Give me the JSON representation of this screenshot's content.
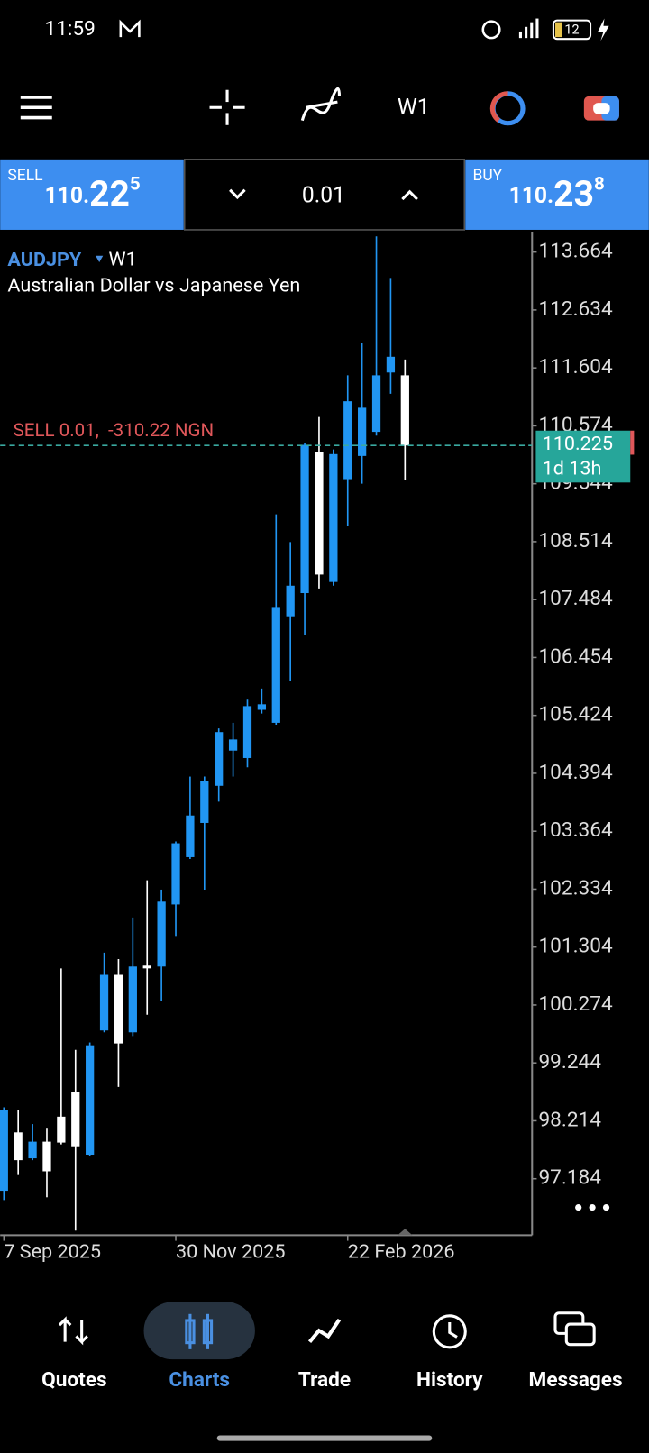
{
  "status_bar": {
    "time": "11:59",
    "battery": "12"
  },
  "toolbar": {
    "timeframe": "W1"
  },
  "trade_panel": {
    "sell_label": "SELL",
    "sell_price": {
      "prefix": "110.",
      "big": "22",
      "sup": "5"
    },
    "lot": "0.01",
    "buy_label": "BUY",
    "buy_price": {
      "prefix": "110.",
      "big": "23",
      "sup": "8"
    }
  },
  "chart_data": {
    "type": "candlestick",
    "symbol": "AUDJPY",
    "timeframe": "W1",
    "title": "Australian Dollar vs Japanese Yen",
    "position_label": "SELL 0.01,  -310.22 NGN",
    "current_price": 110.225,
    "countdown": "1d 13h",
    "categories": [
      "7 Sep 2025",
      null,
      null,
      null,
      null,
      null,
      null,
      null,
      null,
      null,
      null,
      null,
      "30 Nov 2025",
      null,
      null,
      null,
      null,
      null,
      null,
      null,
      null,
      null,
      null,
      null,
      "22 Feb 2026",
      null,
      null,
      null,
      null
    ],
    "open": [
      96.97,
      98.008,
      97.547,
      97.843,
      98.288,
      98.733,
      97.612,
      99.821,
      100.81,
      99.788,
      100.974,
      100.958,
      102.062,
      102.903,
      103.512,
      104.172,
      104.798,
      104.666,
      105.523,
      105.292,
      107.187,
      107.599,
      110.104,
      107.797,
      109.626,
      110.038,
      110.467,
      111.522,
      111.472
    ],
    "high": [
      98.453,
      98.404,
      98.156,
      98.09,
      100.925,
      99.475,
      99.607,
      101.205,
      101.09,
      101.831,
      102.491,
      102.326,
      103.183,
      104.336,
      104.336,
      105.193,
      105.292,
      105.704,
      105.902,
      109.0,
      108.506,
      110.269,
      110.731,
      110.154,
      111.472,
      112.049,
      113.944,
      113.203,
      111.752
    ],
    "low": [
      96.805,
      97.25,
      97.514,
      96.854,
      97.794,
      96.261,
      97.58,
      99.788,
      98.816,
      99.722,
      100.101,
      100.348,
      101.502,
      102.87,
      102.326,
      103.891,
      104.336,
      104.501,
      105.457,
      105.259,
      106.034,
      106.858,
      107.682,
      107.731,
      108.786,
      109.544,
      110.401,
      111.143,
      109.61
    ],
    "close": [
      98.404,
      97.514,
      97.843,
      97.316,
      97.827,
      97.761,
      99.557,
      100.81,
      99.59,
      100.958,
      100.925,
      102.112,
      103.15,
      103.644,
      104.254,
      105.127,
      104.996,
      105.589,
      105.622,
      107.352,
      107.731,
      110.236,
      107.929,
      110.071,
      111.011,
      110.895,
      111.472,
      111.802,
      110.225
    ],
    "up_color": "#2196f3",
    "down_color": "#ffffff",
    "ylim": [
      96.179,
      114.027
    ],
    "yticks": [
      97.184,
      98.214,
      99.244,
      100.274,
      101.304,
      102.334,
      103.364,
      104.394,
      105.424,
      106.454,
      107.484,
      108.514,
      109.544,
      110.574,
      111.604,
      112.634,
      113.664
    ]
  },
  "nav": {
    "items": [
      "Quotes",
      "Charts",
      "Trade",
      "History",
      "Messages"
    ],
    "active": 1
  }
}
